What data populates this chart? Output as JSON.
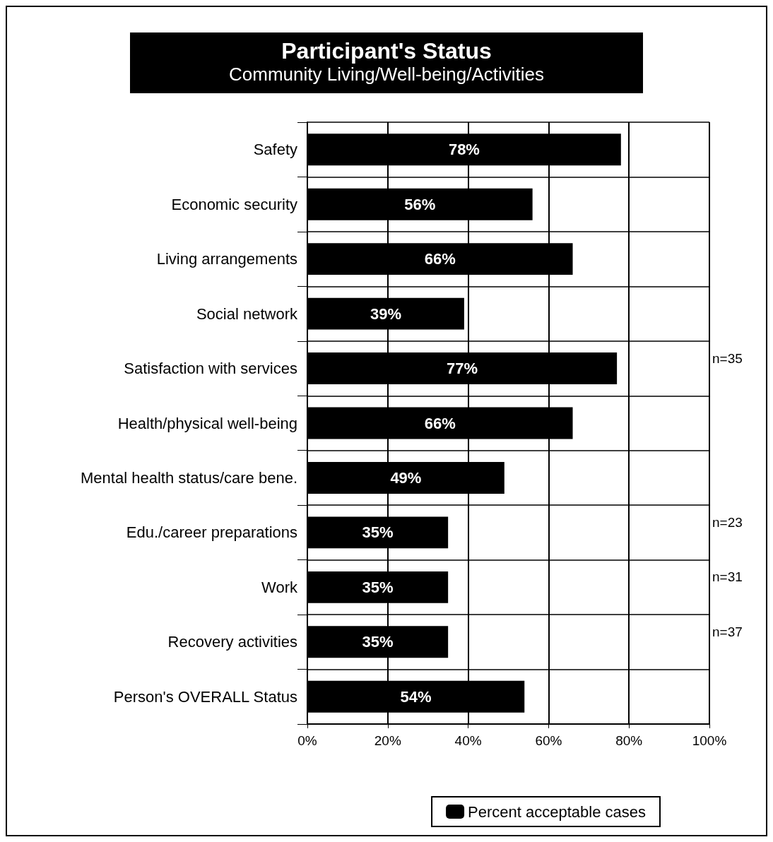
{
  "chart_data": {
    "type": "bar",
    "orientation": "horizontal",
    "title": "Participant's Status",
    "subtitle": "Community Living/Well-being/Activities",
    "categories": [
      "Safety",
      "Economic security",
      "Living arrangements",
      "Social network",
      "Satisfaction with services",
      "Health/physical well-being",
      "Mental health status/care bene.",
      "Edu./career preparations",
      "Work",
      "Recovery activities",
      "Person's OVERALL Status"
    ],
    "series": [
      {
        "name": "Percent acceptable cases",
        "color": "#000000",
        "values": [
          78,
          56,
          66,
          39,
          77,
          66,
          49,
          35,
          35,
          35,
          54
        ],
        "value_labels": [
          "78%",
          "56%",
          "66%",
          "39%",
          "77%",
          "66%",
          "49%",
          "35%",
          "35%",
          "35%",
          "54%"
        ]
      }
    ],
    "xlim": [
      0,
      100
    ],
    "xticks": [
      {
        "value": 0,
        "label": "0%"
      },
      {
        "value": 20,
        "label": "20%"
      },
      {
        "value": 40,
        "label": "40%"
      },
      {
        "value": 60,
        "label": "60%"
      },
      {
        "value": 80,
        "label": "80%"
      },
      {
        "value": 100,
        "label": "100%"
      }
    ],
    "grid": true,
    "legend": "bottom right",
    "annotations": [
      "n=35",
      "n=23",
      "n=31",
      "n=37"
    ]
  }
}
